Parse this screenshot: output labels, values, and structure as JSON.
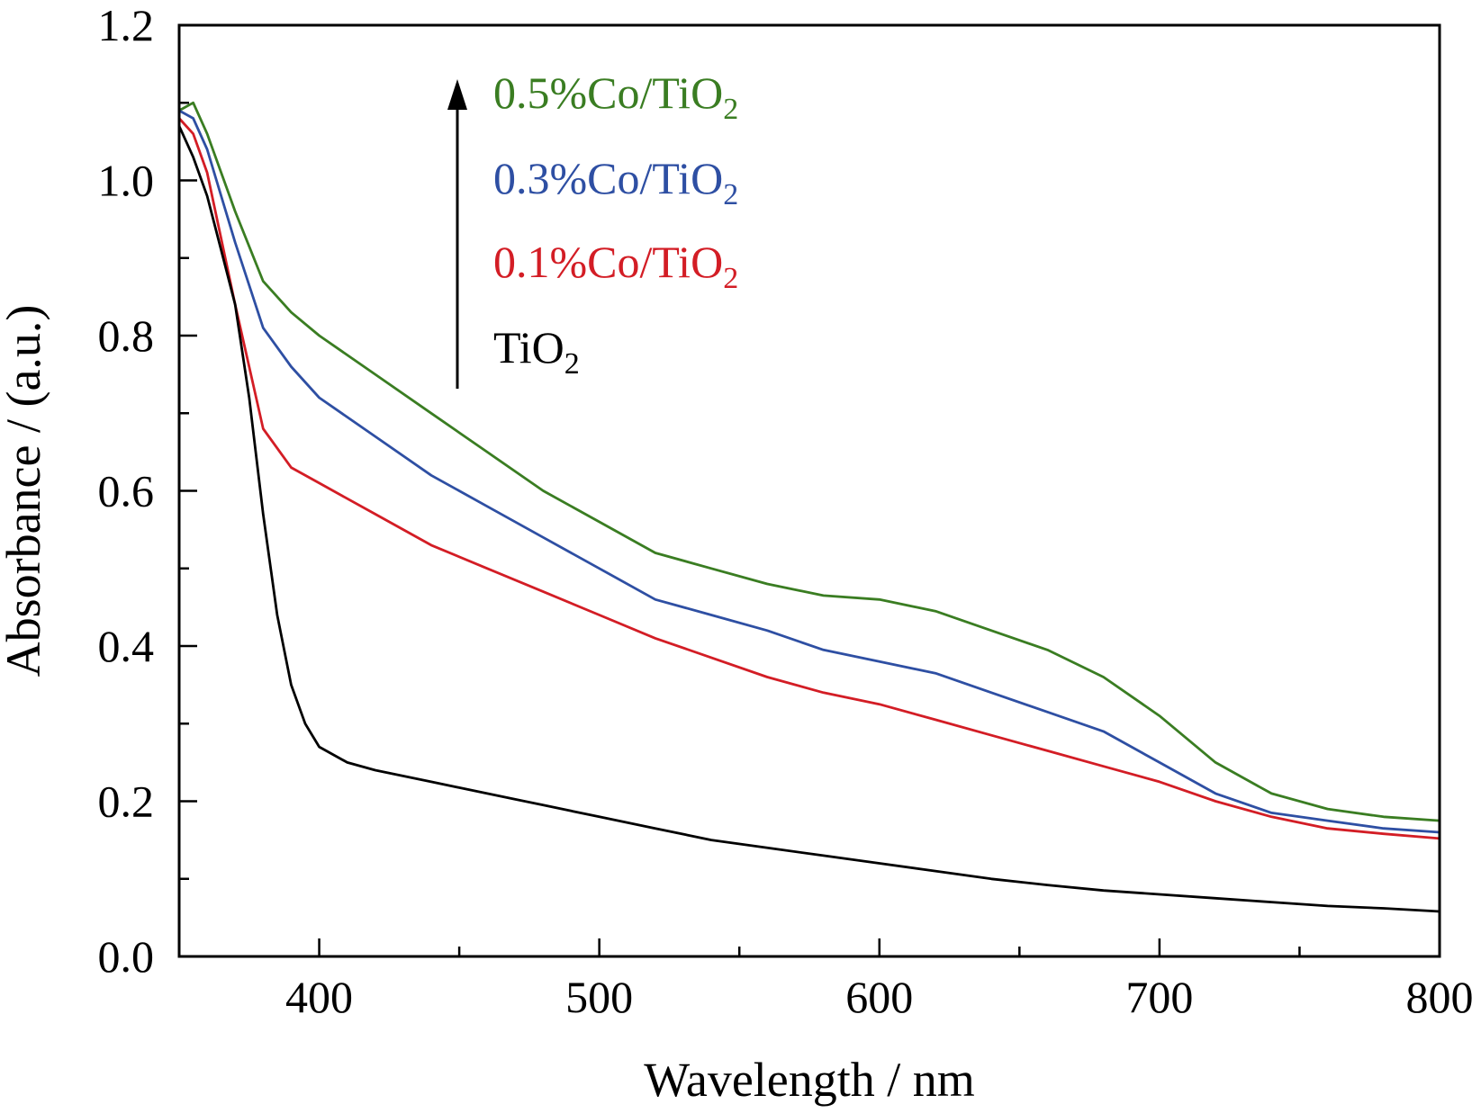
{
  "chart_data": {
    "type": "line",
    "xlabel": "Wavelength / nm",
    "ylabel": "Absorbance / (a.u.)",
    "xlim": [
      350,
      800
    ],
    "ylim": [
      0.0,
      1.2
    ],
    "x_ticks": [
      400,
      500,
      600,
      700,
      800
    ],
    "x_tick_labels": [
      "400",
      "500",
      "600",
      "700",
      "800"
    ],
    "y_ticks": [
      0.0,
      0.2,
      0.4,
      0.6,
      0.8,
      1.0,
      1.2
    ],
    "y_tick_labels": [
      "0.0",
      "0.2",
      "0.4",
      "0.6",
      "0.8",
      "1.0",
      "1.2"
    ],
    "x_minor_step": 50,
    "y_minor_step": 0.1,
    "grid": false,
    "legend_position": "top-left, inside plot, with upward arrow indicating increasing Co loading",
    "series": [
      {
        "name": "0.5%Co/TiO",
        "name_subscript": "2",
        "color": "#3a7d22",
        "x": [
          350,
          355,
          360,
          370,
          380,
          390,
          400,
          420,
          440,
          460,
          480,
          500,
          520,
          540,
          560,
          580,
          600,
          620,
          640,
          660,
          680,
          700,
          720,
          740,
          760,
          780,
          800
        ],
        "y": [
          1.09,
          1.1,
          1.06,
          0.96,
          0.87,
          0.83,
          0.8,
          0.75,
          0.7,
          0.65,
          0.6,
          0.56,
          0.52,
          0.5,
          0.48,
          0.465,
          0.46,
          0.445,
          0.42,
          0.395,
          0.36,
          0.31,
          0.25,
          0.21,
          0.19,
          0.18,
          0.175
        ]
      },
      {
        "name": "0.3%Co/TiO",
        "name_subscript": "2",
        "color": "#2e4fa3",
        "x": [
          350,
          355,
          360,
          370,
          380,
          390,
          400,
          420,
          440,
          460,
          480,
          500,
          520,
          540,
          560,
          580,
          600,
          620,
          640,
          660,
          680,
          700,
          720,
          740,
          760,
          780,
          800
        ],
        "y": [
          1.09,
          1.08,
          1.04,
          0.92,
          0.81,
          0.76,
          0.72,
          0.67,
          0.62,
          0.58,
          0.54,
          0.5,
          0.46,
          0.44,
          0.42,
          0.395,
          0.38,
          0.365,
          0.34,
          0.315,
          0.29,
          0.25,
          0.21,
          0.185,
          0.175,
          0.165,
          0.16
        ]
      },
      {
        "name": "0.1%Co/TiO",
        "name_subscript": "2",
        "color": "#d31d25",
        "x": [
          350,
          355,
          360,
          370,
          380,
          390,
          400,
          420,
          440,
          460,
          480,
          500,
          520,
          540,
          560,
          580,
          600,
          620,
          640,
          660,
          680,
          700,
          720,
          740,
          760,
          780,
          800
        ],
        "y": [
          1.08,
          1.06,
          1.01,
          0.84,
          0.68,
          0.63,
          0.61,
          0.57,
          0.53,
          0.5,
          0.47,
          0.44,
          0.41,
          0.385,
          0.36,
          0.34,
          0.325,
          0.305,
          0.285,
          0.265,
          0.245,
          0.225,
          0.2,
          0.18,
          0.165,
          0.158,
          0.152
        ]
      },
      {
        "name": "TiO",
        "name_subscript": "2",
        "color": "#000000",
        "x": [
          350,
          355,
          360,
          365,
          370,
          375,
          380,
          385,
          390,
          395,
          400,
          410,
          420,
          440,
          460,
          480,
          500,
          520,
          540,
          560,
          580,
          600,
          620,
          640,
          660,
          680,
          700,
          720,
          740,
          760,
          780,
          800
        ],
        "y": [
          1.07,
          1.03,
          0.98,
          0.91,
          0.84,
          0.72,
          0.57,
          0.44,
          0.35,
          0.3,
          0.27,
          0.25,
          0.24,
          0.225,
          0.21,
          0.195,
          0.18,
          0.165,
          0.15,
          0.14,
          0.13,
          0.12,
          0.11,
          0.1,
          0.092,
          0.085,
          0.08,
          0.075,
          0.07,
          0.065,
          0.062,
          0.058
        ]
      }
    ]
  }
}
